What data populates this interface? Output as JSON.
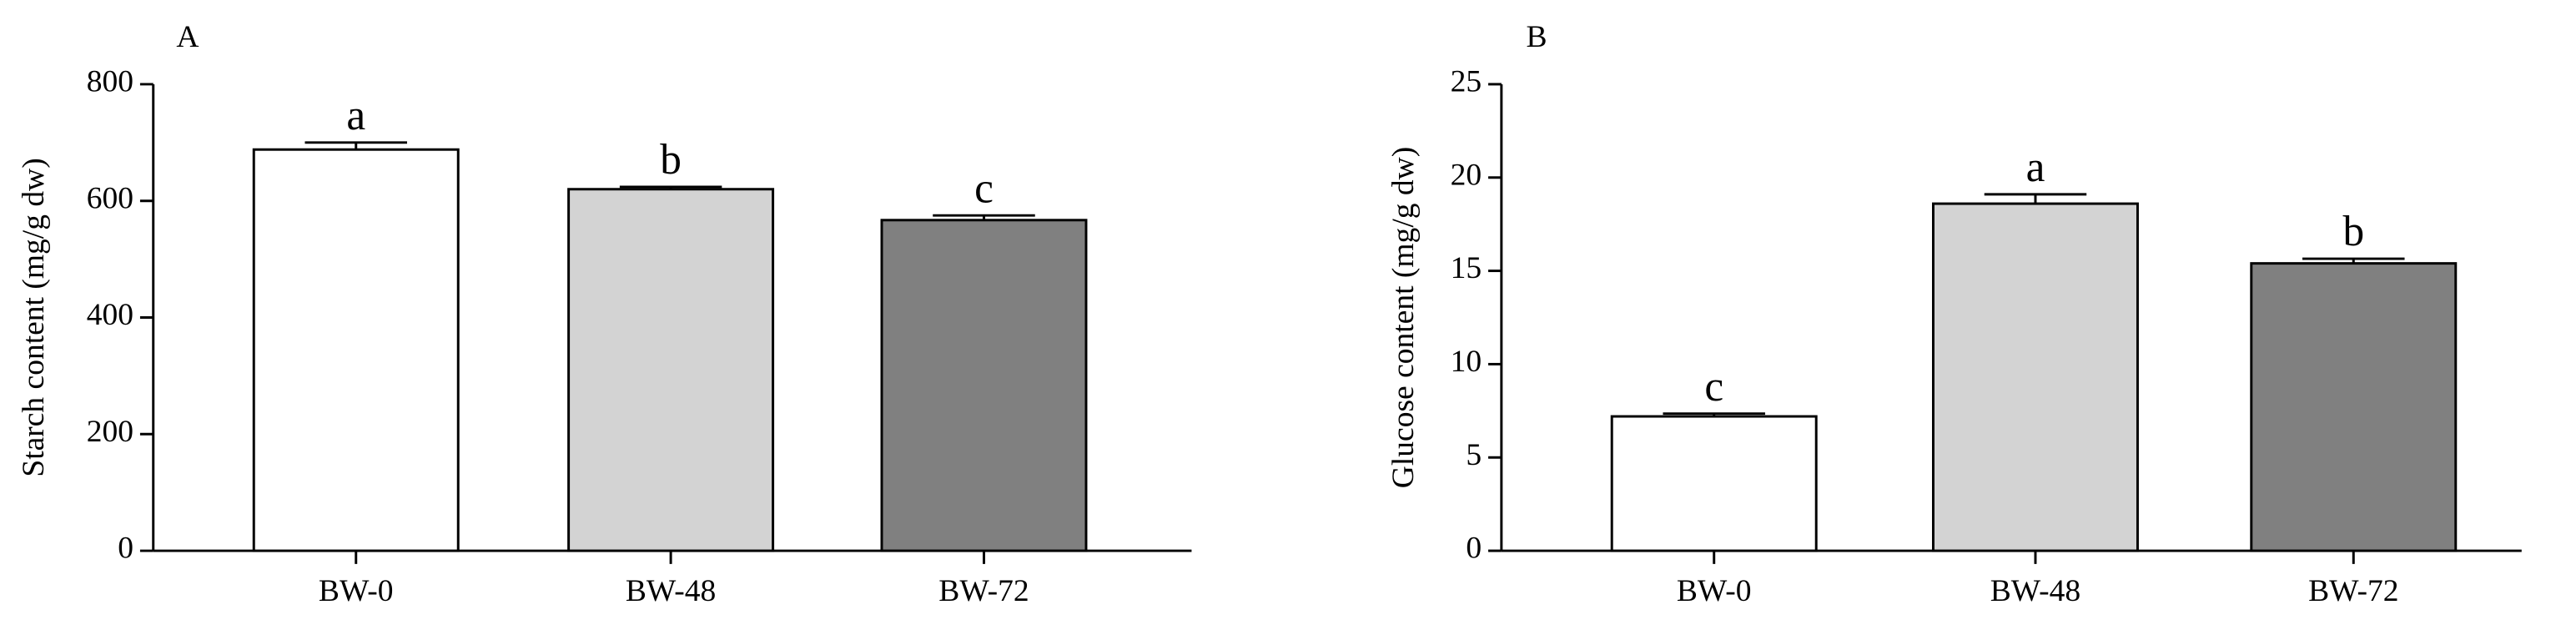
{
  "chart_data": [
    {
      "type": "bar",
      "panel_label": "A",
      "y_label": "Starch content (mg/g dw)",
      "categories": [
        "BW-0",
        "BW-48",
        "BW-72"
      ],
      "values": [
        688,
        620,
        567
      ],
      "errors": [
        12,
        4,
        8
      ],
      "colors": [
        "#ffffff",
        "#d3d3d3",
        "#808080"
      ],
      "significance": [
        "a",
        "b",
        "c"
      ],
      "ylim": [
        0,
        800
      ],
      "yticks": [
        0,
        200,
        400,
        600,
        800
      ]
    },
    {
      "type": "bar",
      "panel_label": "B",
      "y_label": "Glucose content (mg/g dw)",
      "categories": [
        "BW-0",
        "BW-48",
        "BW-72"
      ],
      "values": [
        7.2,
        18.6,
        15.4
      ],
      "errors": [
        0.15,
        0.5,
        0.25
      ],
      "colors": [
        "#ffffff",
        "#d3d3d3",
        "#808080"
      ],
      "significance": [
        "c",
        "a",
        "b"
      ],
      "ylim": [
        0,
        25
      ],
      "yticks": [
        0,
        5,
        10,
        15,
        20,
        25
      ]
    }
  ]
}
